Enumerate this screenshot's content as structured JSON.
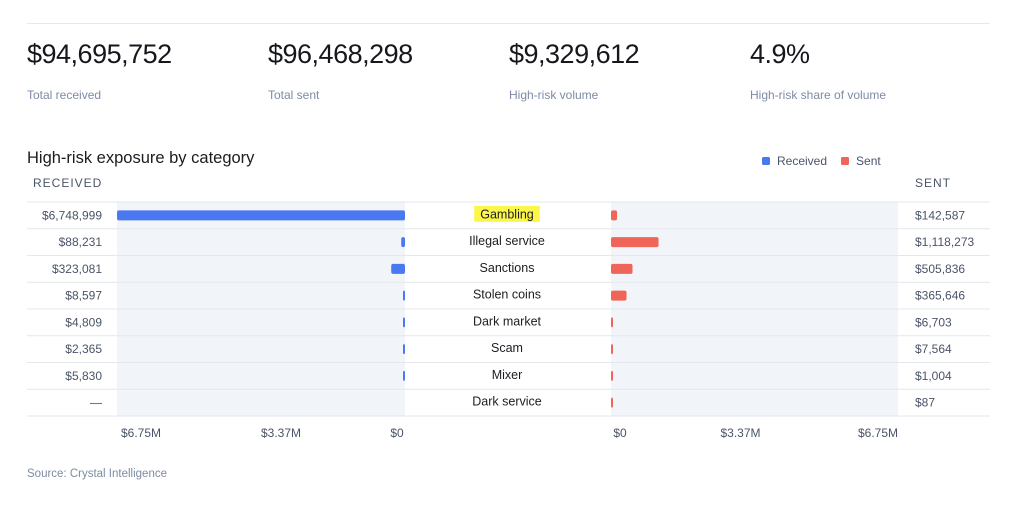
{
  "stats": [
    {
      "value": "$94,695,752",
      "label": "Total received"
    },
    {
      "value": "$96,468,298",
      "label": "Total sent"
    },
    {
      "value": "$9,329,612",
      "label": "High-risk volume"
    },
    {
      "value": "4.9%",
      "label": "High-risk share of volume"
    }
  ],
  "chart_data": {
    "type": "bar",
    "title": "High-risk exposure by category",
    "received_heading": "RECEIVED",
    "sent_heading": "SENT",
    "legend": [
      {
        "name": "Received",
        "color": "#4a78f0"
      },
      {
        "name": "Sent",
        "color": "#f0655a"
      }
    ],
    "categories": [
      "Gambling",
      "Illegal service",
      "Sanctions",
      "Stolen coins",
      "Dark market",
      "Scam",
      "Mixer",
      "Dark service"
    ],
    "highlighted_category": "Gambling",
    "highlight_color": "#fdf64a",
    "series": [
      {
        "name": "Received",
        "color": "#4a78f0",
        "values": [
          6748999,
          88231,
          323081,
          8597,
          4809,
          2365,
          5830,
          0
        ],
        "labels": [
          "$6,748,999",
          "$88,231",
          "$323,081",
          "$8,597",
          "$4,809",
          "$2,365",
          "$5,830",
          "—"
        ]
      },
      {
        "name": "Sent",
        "color": "#f0655a",
        "values": [
          142587,
          1118273,
          505836,
          365646,
          6703,
          7564,
          1004,
          87
        ],
        "labels": [
          "$142,587",
          "$1,118,273",
          "$505,836",
          "$365,646",
          "$6,703",
          "$7,564",
          "$1,004",
          "$87"
        ]
      }
    ],
    "axis_max": 6750000,
    "received_ticks": [
      "$6.75M",
      "$3.37M",
      "$0"
    ],
    "sent_ticks": [
      "$0",
      "$3.37M",
      "$6.75M"
    ],
    "panel_color": "#f1f4f9"
  },
  "source": "Source: Crystal Intelligence"
}
